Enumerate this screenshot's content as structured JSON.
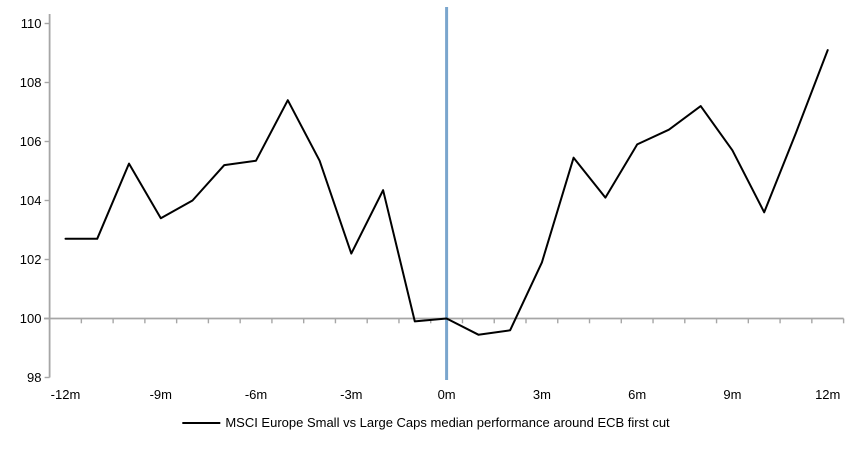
{
  "chart_data": {
    "type": "line",
    "title": "",
    "legend": "MSCI Europe Small vs Large Caps median performance around ECB first cut",
    "x": [
      -12,
      -11,
      -10,
      -9,
      -8,
      -7,
      -6,
      -5,
      -4,
      -3,
      -2,
      -1,
      0,
      1,
      2,
      3,
      4,
      5,
      6,
      7,
      8,
      9,
      10,
      11,
      12
    ],
    "values": [
      102.7,
      102.7,
      105.25,
      103.4,
      104.0,
      105.2,
      105.35,
      107.4,
      105.35,
      102.2,
      104.35,
      99.9,
      100.0,
      99.45,
      99.6,
      101.9,
      105.45,
      104.1,
      105.9,
      106.4,
      107.2,
      105.7,
      103.6,
      106.3,
      109.1
    ],
    "x_tick_labels": [
      "-12m",
      "-9m",
      "-6m",
      "-3m",
      "0m",
      "3m",
      "6m",
      "9m",
      "12m"
    ],
    "x_tick_positions": [
      -12,
      -9,
      -6,
      -3,
      0,
      3,
      6,
      9,
      12
    ],
    "y_ticks": [
      110,
      108,
      106,
      104,
      102,
      100,
      98
    ],
    "ylim": [
      98,
      110.5
    ],
    "xlim": [
      -12.5,
      12.5
    ],
    "baseline_value": 100,
    "event_line_x": 0,
    "grid": "off",
    "legend_position": "bottom-center",
    "colors": {
      "series": "#000000",
      "event_line": "#7aa6cd",
      "axis": "#a6a6a6",
      "text": "#000000",
      "background": "#ffffff"
    }
  }
}
